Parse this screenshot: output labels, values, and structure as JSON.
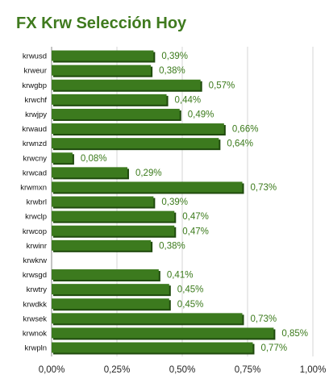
{
  "chart_data": {
    "type": "bar",
    "orientation": "horizontal",
    "title": "FX Krw Selección Hoy",
    "categories": [
      "krwusd",
      "krweur",
      "krwgbp",
      "krwchf",
      "krwjpy",
      "krwaud",
      "krwnzd",
      "krwcny",
      "krwcad",
      "krwmxn",
      "krwbrl",
      "krwclp",
      "krwcop",
      "krwinr",
      "krwkrw",
      "krwsgd",
      "krwtry",
      "krwdkk",
      "krwsek",
      "krwnok",
      "krwpln"
    ],
    "values": [
      0.39,
      0.38,
      0.57,
      0.44,
      0.49,
      0.66,
      0.64,
      0.08,
      0.29,
      0.73,
      0.39,
      0.47,
      0.47,
      0.38,
      null,
      0.41,
      0.45,
      0.45,
      0.73,
      0.85,
      0.77
    ],
    "value_labels": [
      "0,39%",
      "0,38%",
      "0,57%",
      "0,44%",
      "0,49%",
      "0,66%",
      "0,64%",
      "0,08%",
      "0,29%",
      "0,73%",
      "0,39%",
      "0,47%",
      "0,47%",
      "0,38%",
      "",
      "0,41%",
      "0,45%",
      "0,45%",
      "0,73%",
      "0,85%",
      "0,77%"
    ],
    "xlim": [
      0,
      1.0
    ],
    "x_ticks": [
      0,
      0.25,
      0.5,
      0.75,
      1.0
    ],
    "x_tick_labels": [
      "0,00%",
      "0,25%",
      "0,50%",
      "0,75%",
      "1,00%"
    ],
    "grid": true,
    "colors": {
      "bar": "#3c7a1e",
      "bar_shadow": "#1f4a0d",
      "value_label": "#3b7a1b",
      "title": "#3f7a1e",
      "grid": "#d6d6d6"
    }
  }
}
